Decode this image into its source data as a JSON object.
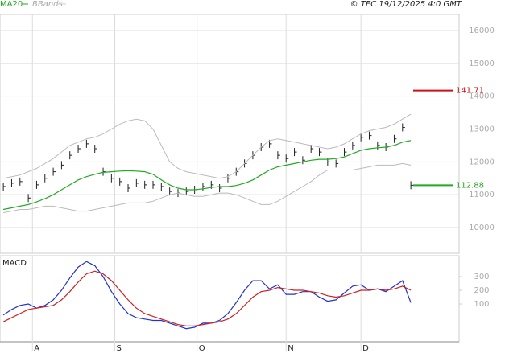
{
  "copyright": "© TEC 19/12/2025 4:0 GMT",
  "chart_data": [
    {
      "type": "price",
      "xlim": [
        -0.4,
        54.8
      ],
      "xticks": [
        3.5,
        13.4,
        23.3,
        34,
        43
      ],
      "ylim": [
        9216,
        16490
      ],
      "yticks": [
        10000,
        11000,
        12000,
        13000,
        14000,
        15000,
        16000
      ],
      "grid": true,
      "x": [
        0,
        1,
        2,
        3,
        4,
        5,
        6,
        7,
        8,
        9,
        10,
        11,
        12,
        13,
        14,
        15,
        16,
        17,
        18,
        19,
        20,
        21,
        22,
        23,
        24,
        25,
        26,
        27,
        28,
        29,
        30,
        31,
        32,
        33,
        34,
        35,
        36,
        37,
        38,
        39,
        40,
        41,
        42,
        43,
        44,
        45,
        46,
        47,
        48,
        49
      ],
      "series": [
        {
          "color": "#222222",
          "style": "ticks",
          "values": [
            11250,
            11350,
            11400,
            10900,
            11300,
            11500,
            11700,
            11900,
            12200,
            12400,
            12550,
            12400,
            11700,
            11500,
            11400,
            11200,
            11350,
            11300,
            11300,
            11250,
            11100,
            11050,
            11100,
            11150,
            11250,
            11300,
            11200,
            11500,
            11700,
            11950,
            12200,
            12450,
            12550,
            12200,
            12100,
            12300,
            12050,
            12400,
            12300,
            12000,
            11950,
            12300,
            12500,
            12750,
            12800,
            12500,
            12450,
            12700,
            13050,
            11288
          ]
        },
        {
          "name": "MA20",
          "color": "#22aa22",
          "style": "line",
          "values": [
            10550,
            10600,
            10650,
            10700,
            10780,
            10880,
            11000,
            11150,
            11300,
            11450,
            11550,
            11620,
            11680,
            11700,
            11720,
            11730,
            11720,
            11700,
            11620,
            11450,
            11300,
            11200,
            11150,
            11150,
            11180,
            11220,
            11250,
            11250,
            11280,
            11350,
            11450,
            11600,
            11750,
            11850,
            11900,
            11950,
            12000,
            12050,
            12080,
            12080,
            12100,
            12150,
            12250,
            12350,
            12400,
            12430,
            12450,
            12500,
            12600,
            12650
          ]
        },
        {
          "name": "BBands",
          "color": "#bbbbbb",
          "style": "band",
          "values": [
            11500,
            11550,
            11600,
            11700,
            11800,
            11950,
            12100,
            12300,
            12500,
            12600,
            12700,
            12750,
            12850,
            13000,
            13150,
            13250,
            13300,
            13250,
            13000,
            12500,
            12000,
            11800,
            11700,
            11650,
            11600,
            11550,
            11500,
            11550,
            11700,
            11950,
            12200,
            12450,
            12650,
            12700,
            12650,
            12600,
            12550,
            12500,
            12450,
            12400,
            12450,
            12550,
            12700,
            12850,
            12950,
            13000,
            13050,
            13150,
            13300,
            13450
          ],
          "lower": [
            10450,
            10500,
            10550,
            10550,
            10600,
            10650,
            10650,
            10600,
            10550,
            10500,
            10500,
            10550,
            10600,
            10650,
            10700,
            10750,
            10750,
            10750,
            10800,
            10900,
            11000,
            11050,
            11000,
            10950,
            10950,
            11000,
            11050,
            11050,
            11000,
            10900,
            10800,
            10700,
            10700,
            10800,
            10950,
            11100,
            11250,
            11400,
            11600,
            11750,
            11750,
            11750,
            11750,
            11800,
            11850,
            11900,
            11900,
            11900,
            11950,
            11900
          ]
        }
      ],
      "levels": [
        {
          "value": 14171,
          "label": "141.71",
          "color": "#cc1111"
        },
        {
          "value": 11288,
          "label": "112.88",
          "color": "#22aa22"
        }
      ]
    },
    {
      "type": "macd",
      "title": "MACD",
      "xlim": [
        -0.4,
        54.8
      ],
      "xticks": [
        {
          "value": 3.5,
          "label": "A"
        },
        {
          "value": 13.4,
          "label": "S"
        },
        {
          "value": 23.3,
          "label": "O"
        },
        {
          "value": 34,
          "label": "N"
        },
        {
          "value": 43,
          "label": "D"
        }
      ],
      "ylim": [
        -176,
        453
      ],
      "yticks": [
        100,
        200,
        300
      ],
      "x": [
        0,
        1,
        2,
        3,
        4,
        5,
        6,
        7,
        8,
        9,
        10,
        11,
        12,
        13,
        14,
        15,
        16,
        17,
        18,
        19,
        20,
        21,
        22,
        23,
        24,
        25,
        26,
        27,
        28,
        29,
        30,
        31,
        32,
        33,
        34,
        35,
        36,
        37,
        38,
        39,
        40,
        41,
        42,
        43,
        44,
        45,
        46,
        47,
        48,
        49
      ],
      "series": [
        {
          "color": "#2233cc",
          "values": [
            20,
            60,
            90,
            100,
            70,
            90,
            130,
            200,
            290,
            370,
            410,
            380,
            300,
            190,
            100,
            30,
            0,
            -10,
            -20,
            -20,
            -40,
            -60,
            -80,
            -70,
            -40,
            -40,
            -20,
            30,
            110,
            200,
            270,
            270,
            210,
            240,
            170,
            170,
            190,
            190,
            150,
            120,
            130,
            180,
            230,
            240,
            200,
            210,
            190,
            230,
            270,
            110
          ]
        },
        {
          "color": "#cc2222",
          "values": [
            -30,
            0,
            30,
            60,
            70,
            80,
            90,
            130,
            190,
            260,
            320,
            340,
            320,
            270,
            200,
            130,
            70,
            30,
            10,
            -10,
            -30,
            -50,
            -60,
            -60,
            -50,
            -40,
            -30,
            -10,
            30,
            90,
            150,
            190,
            200,
            220,
            210,
            200,
            200,
            190,
            180,
            160,
            150,
            160,
            180,
            200,
            200,
            210,
            200,
            210,
            230,
            200
          ]
        }
      ]
    }
  ]
}
